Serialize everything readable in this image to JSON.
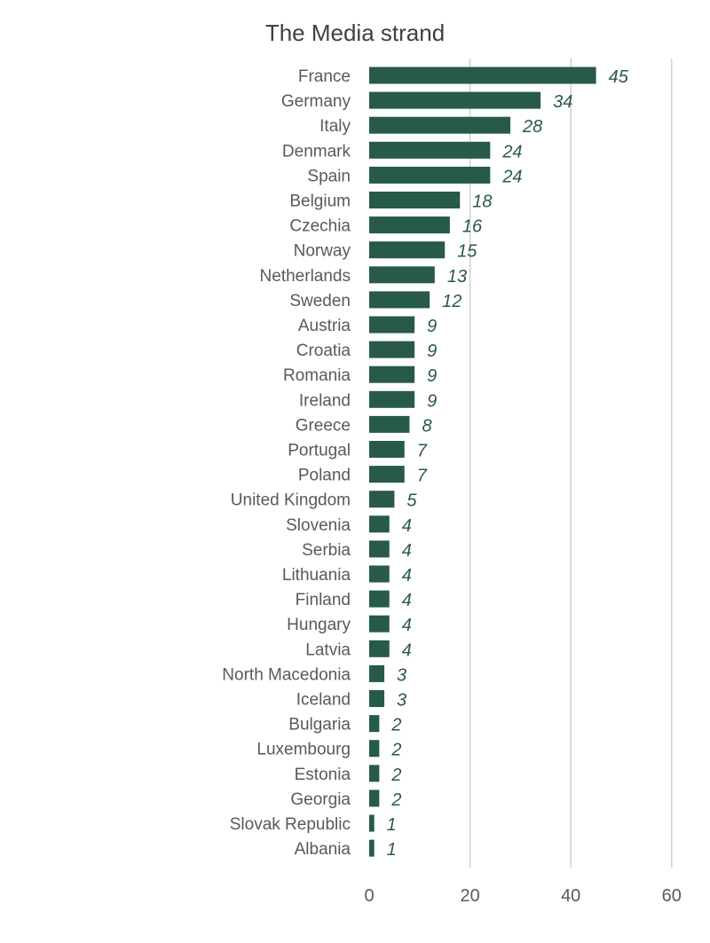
{
  "chart_data": {
    "type": "bar",
    "orientation": "horizontal",
    "title": "The Media strand",
    "xlabel": "",
    "ylabel": "",
    "xlim": [
      0,
      60
    ],
    "x_ticks": [
      0,
      20,
      40,
      60
    ],
    "grid": "vertical",
    "legend": "none",
    "bar_color": "#275a47",
    "value_label_color": "#2b5a45",
    "categories": [
      "France",
      "Germany",
      "Italy",
      "Denmark",
      "Spain",
      "Belgium",
      "Czechia",
      "Norway",
      "Netherlands",
      "Sweden",
      "Austria",
      "Croatia",
      "Romania",
      "Ireland",
      "Greece",
      "Portugal",
      "Poland",
      "United Kingdom",
      "Slovenia",
      "Serbia",
      "Lithuania",
      "Finland",
      "Hungary",
      "Latvia",
      "North Macedonia",
      "Iceland",
      "Bulgaria",
      "Luxembourg",
      "Estonia",
      "Georgia",
      "Slovak Republic",
      "Albania"
    ],
    "values": [
      45,
      34,
      28,
      24,
      24,
      18,
      16,
      15,
      13,
      12,
      9,
      9,
      9,
      9,
      8,
      7,
      7,
      5,
      4,
      4,
      4,
      4,
      4,
      4,
      3,
      3,
      2,
      2,
      2,
      2,
      1,
      1
    ]
  }
}
